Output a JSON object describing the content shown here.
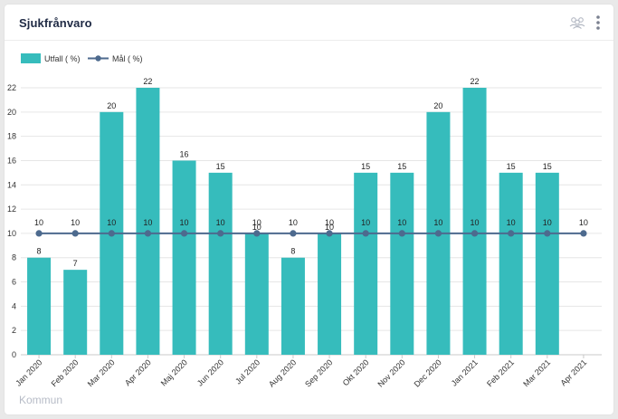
{
  "header": {
    "title": "Sjukfrånvaro",
    "icons": [
      "group-icon",
      "more-vertical-icon"
    ]
  },
  "footer": {
    "label": "Kommun"
  },
  "colors": {
    "bar": "#36bcbc",
    "line": "#4d6a8e",
    "grid": "#e6e6e6",
    "axis": "#c9c9c9"
  },
  "chart_data": {
    "type": "bar",
    "categories": [
      "Jan 2020",
      "Feb 2020",
      "Mar 2020",
      "Apr 2020",
      "Maj 2020",
      "Jun 2020",
      "Jul 2020",
      "Aug 2020",
      "Sep 2020",
      "Okt 2020",
      "Nov 2020",
      "Dec 2020",
      "Jan 2021",
      "Feb 2021",
      "Mar 2021",
      "Apr 2021"
    ],
    "series": [
      {
        "name": "Utfall ( %)",
        "type": "bar",
        "values": [
          8,
          7,
          20,
          22,
          16,
          15,
          10,
          8,
          10,
          15,
          15,
          20,
          22,
          15,
          15,
          null
        ]
      },
      {
        "name": "Mål ( %)",
        "type": "line",
        "values": [
          10,
          10,
          10,
          10,
          10,
          10,
          10,
          10,
          10,
          10,
          10,
          10,
          10,
          10,
          10,
          10
        ]
      }
    ],
    "yticks": [
      "0",
      "2",
      "4",
      "6",
      "8",
      "10",
      "12",
      "14",
      "16",
      "18",
      "20",
      "22"
    ],
    "ylim": [
      0,
      22
    ],
    "grid": true,
    "legend_position": "top-left"
  }
}
